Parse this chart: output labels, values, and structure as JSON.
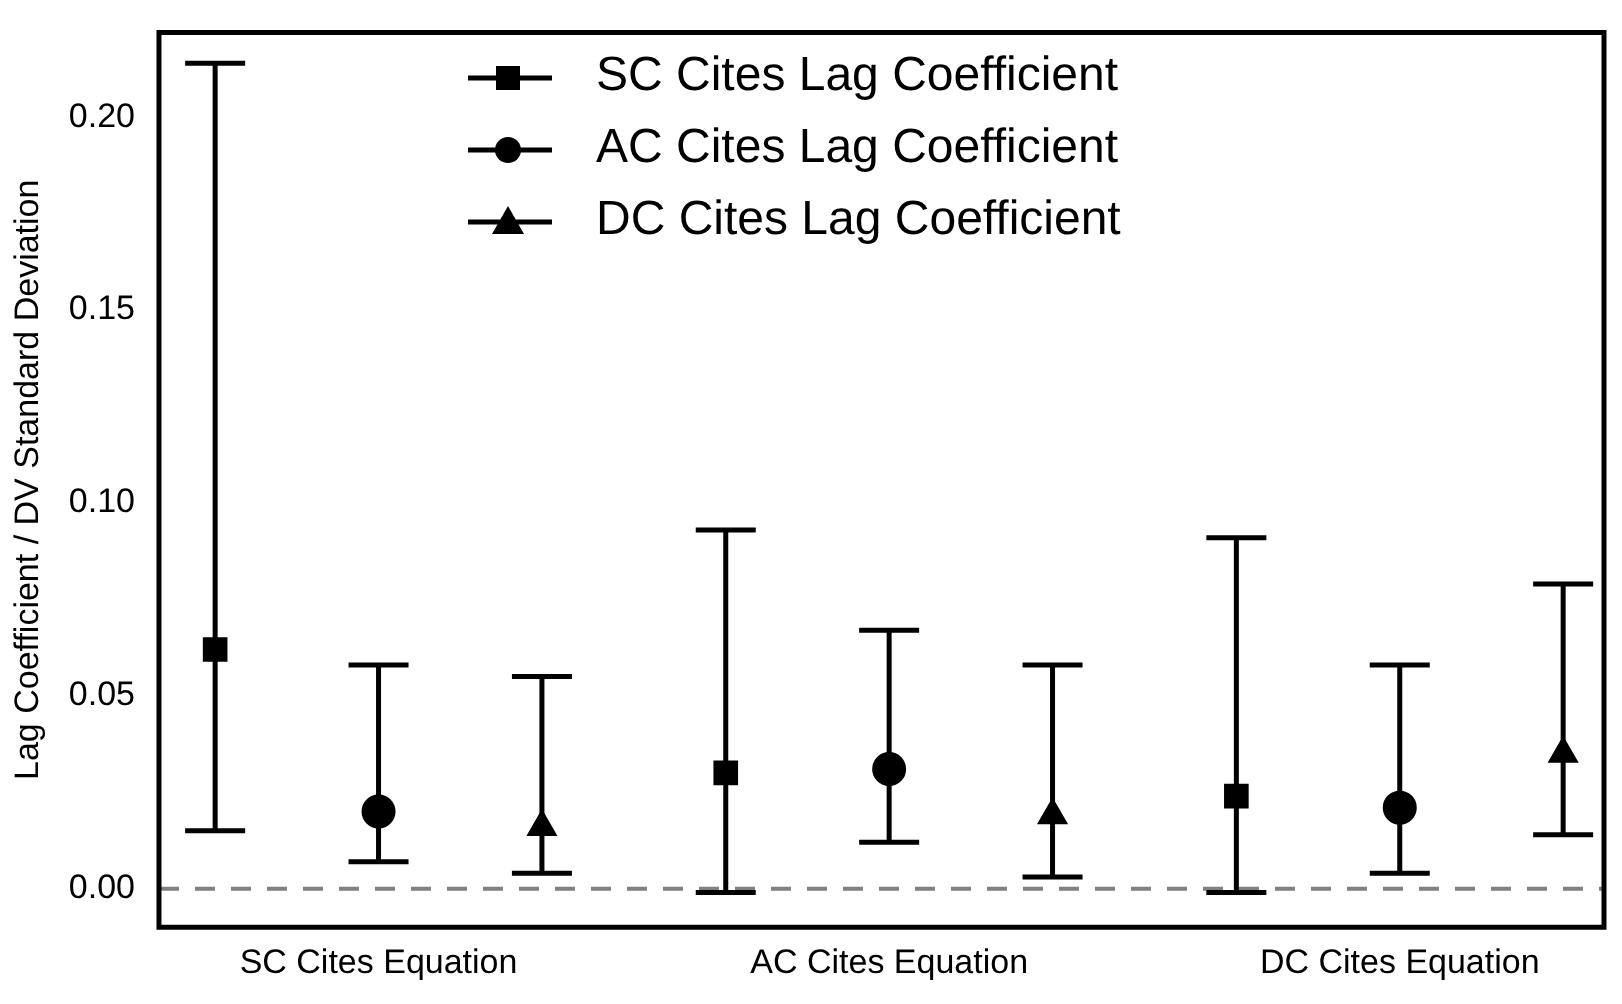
{
  "chart_data": {
    "type": "scatter",
    "categories": [
      "SC Cites Equation",
      "AC Cites Equation",
      "DC Cites Equation"
    ],
    "ylabel": "Lag Coefficient / DV Standard Deviation",
    "ylim": [
      -0.01,
      0.222
    ],
    "yticks": [
      {
        "value": 0,
        "label": "0.00"
      },
      0.05,
      {
        "value": 0.1,
        "label": "0.10"
      },
      0.15,
      {
        "value": 0.2,
        "label": "0.20"
      }
    ],
    "series": [
      {
        "name": "SC Cites Lag Coefficient",
        "color": "#000000",
        "marker": "square",
        "values": [
          0.062,
          0.03,
          0.024
        ],
        "errors": [
          [
            0.015,
            0.214
          ],
          [
            -0.001,
            0.093
          ],
          [
            -0.001,
            0.091
          ]
        ]
      },
      {
        "name": "AC Cites Lag Coefficient",
        "color": "#000000",
        "marker": "circle",
        "values": [
          0.02,
          0.031,
          0.021
        ],
        "errors": [
          [
            0.007,
            0.058
          ],
          [
            0.012,
            0.067
          ],
          [
            0.004,
            0.058
          ]
        ]
      },
      {
        "name": "DC Cites Lag Coefficient",
        "color": "#000000",
        "marker": "triangle",
        "values": [
          0.016,
          0.019,
          0.035
        ],
        "errors": [
          [
            0.004,
            0.055
          ],
          [
            0.003,
            0.058
          ],
          [
            0.014,
            0.079
          ]
        ]
      }
    ],
    "ref_lines": [
      {
        "axis": "y",
        "value": 0,
        "color": "#808080",
        "line_style": "dashed"
      }
    ],
    "legend": "top",
    "grid": false
  }
}
